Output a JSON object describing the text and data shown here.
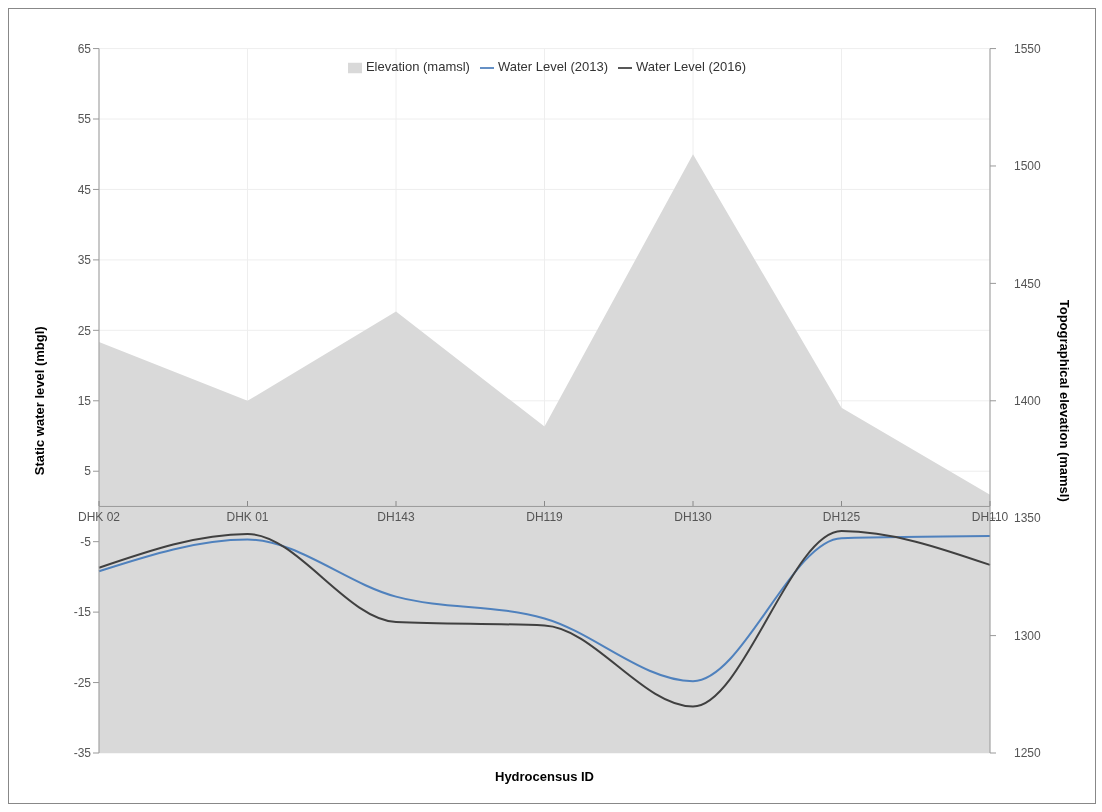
{
  "chart_data": {
    "type": "line",
    "xlabel": "Hydrocensus ID",
    "ylabel": "Static water level (mbgl)",
    "y2label": "Topographical elevation (mamsl)",
    "categories": [
      "DHK 02",
      "DHK 01",
      "DH143",
      "DH119",
      "DH130",
      "DH125",
      "DH110"
    ],
    "series": [
      {
        "name": "Elevation (mamsl)",
        "type": "area",
        "axis": "y2",
        "color": "#d9d9d9",
        "values": [
          1425,
          1400,
          1438,
          1389,
          1505,
          1397,
          1360
        ]
      },
      {
        "name": "Water Level (2013)",
        "color": "#4f81bd",
        "values": [
          -9.2,
          -4.7,
          -12.8,
          -15.9,
          -24.8,
          -4.5,
          -4.2
        ]
      },
      {
        "name": "Water Level (2016)",
        "color": "#404040",
        "values": [
          -8.7,
          -3.9,
          -16.4,
          -16.9,
          -28.4,
          -3.5,
          -8.3
        ]
      }
    ],
    "ylim": [
      -35,
      65
    ],
    "yticks": [
      -35,
      -25,
      -15,
      -5,
      5,
      15,
      25,
      35,
      45,
      55,
      65
    ],
    "y2lim": [
      1250,
      1550
    ],
    "y2ticks": [
      1250,
      1300,
      1350,
      1400,
      1450,
      1500,
      1550
    ],
    "grid": true,
    "legend": "top",
    "marker": "none",
    "line_style": "solid"
  }
}
